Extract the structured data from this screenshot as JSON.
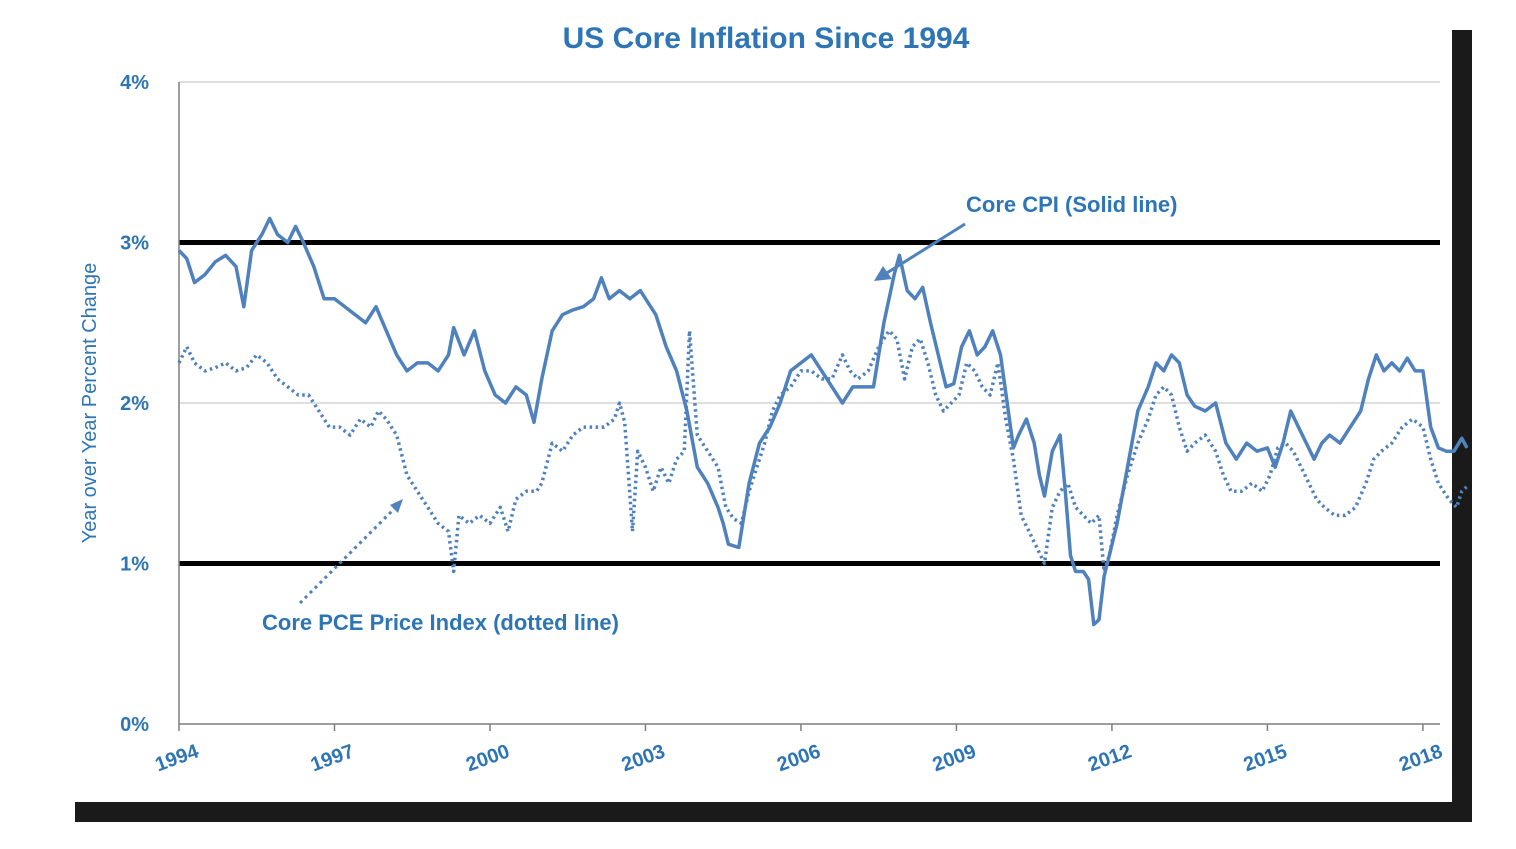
{
  "colors": {
    "series": "#4f81bd",
    "text": "#2e75b6",
    "threshold": "#000000",
    "grid": "#bfbfbf",
    "axis": "#7f7f7f",
    "shadow": "#1a1a1a"
  },
  "chart_data": {
    "type": "line",
    "title": "US Core Inflation Since 1994",
    "ylabel": "Year over Year Percent Change",
    "xlabel": "",
    "xlim": [
      1994,
      2018.33
    ],
    "ylim": [
      0,
      4
    ],
    "xticks": [
      1994,
      1997,
      2000,
      2003,
      2006,
      2009,
      2012,
      2015,
      2018
    ],
    "xtick_labels": [
      "1994",
      "1997",
      "2000",
      "2003",
      "2006",
      "2009",
      "2012",
      "2015",
      "2018"
    ],
    "yticks": [
      0,
      1,
      2,
      3,
      4
    ],
    "ytick_labels": [
      "0%",
      "1%",
      "2%",
      "3%",
      "4%"
    ],
    "grid": "horizontal",
    "threshold_lines": [
      1,
      3
    ],
    "annotations": [
      {
        "text": "Core CPI (Solid line)",
        "points_to": "Core CPI"
      },
      {
        "text": "Core PCE Price Index (dotted line)",
        "points_to": "Core PCE Price Index"
      }
    ],
    "series": [
      {
        "name": "Core CPI",
        "style": "solid",
        "points": [
          [
            1994.0,
            2.95
          ],
          [
            1994.15,
            2.9
          ],
          [
            1994.3,
            2.75
          ],
          [
            1994.5,
            2.8
          ],
          [
            1994.7,
            2.88
          ],
          [
            1994.9,
            2.92
          ],
          [
            1995.1,
            2.85
          ],
          [
            1995.25,
            2.6
          ],
          [
            1995.4,
            2.95
          ],
          [
            1995.6,
            3.05
          ],
          [
            1995.75,
            3.15
          ],
          [
            1995.9,
            3.05
          ],
          [
            1996.1,
            3.0
          ],
          [
            1996.25,
            3.1
          ],
          [
            1996.4,
            3.0
          ],
          [
            1996.6,
            2.85
          ],
          [
            1996.8,
            2.65
          ],
          [
            1997.0,
            2.65
          ],
          [
            1997.2,
            2.6
          ],
          [
            1997.4,
            2.55
          ],
          [
            1997.6,
            2.5
          ],
          [
            1997.8,
            2.6
          ],
          [
            1998.0,
            2.45
          ],
          [
            1998.2,
            2.3
          ],
          [
            1998.4,
            2.2
          ],
          [
            1998.6,
            2.25
          ],
          [
            1998.8,
            2.25
          ],
          [
            1999.0,
            2.2
          ],
          [
            1999.2,
            2.3
          ],
          [
            1999.3,
            2.47
          ],
          [
            1999.5,
            2.3
          ],
          [
            1999.7,
            2.45
          ],
          [
            1999.9,
            2.2
          ],
          [
            2000.1,
            2.05
          ],
          [
            2000.3,
            2.0
          ],
          [
            2000.5,
            2.1
          ],
          [
            2000.7,
            2.05
          ],
          [
            2000.85,
            1.88
          ],
          [
            2001.0,
            2.15
          ],
          [
            2001.2,
            2.45
          ],
          [
            2001.4,
            2.55
          ],
          [
            2001.6,
            2.58
          ],
          [
            2001.8,
            2.6
          ],
          [
            2002.0,
            2.65
          ],
          [
            2002.15,
            2.78
          ],
          [
            2002.3,
            2.65
          ],
          [
            2002.5,
            2.7
          ],
          [
            2002.7,
            2.65
          ],
          [
            2002.9,
            2.7
          ],
          [
            2003.0,
            2.65
          ],
          [
            2003.2,
            2.55
          ],
          [
            2003.4,
            2.35
          ],
          [
            2003.6,
            2.2
          ],
          [
            2003.8,
            1.95
          ],
          [
            2004.0,
            1.6
          ],
          [
            2004.2,
            1.5
          ],
          [
            2004.4,
            1.35
          ],
          [
            2004.5,
            1.25
          ],
          [
            2004.6,
            1.12
          ],
          [
            2004.8,
            1.1
          ],
          [
            2005.0,
            1.5
          ],
          [
            2005.2,
            1.75
          ],
          [
            2005.4,
            1.85
          ],
          [
            2005.6,
            2.0
          ],
          [
            2005.8,
            2.2
          ],
          [
            2006.0,
            2.25
          ],
          [
            2006.2,
            2.3
          ],
          [
            2006.4,
            2.2
          ],
          [
            2006.6,
            2.1
          ],
          [
            2006.8,
            2.0
          ],
          [
            2007.0,
            2.1
          ],
          [
            2007.2,
            2.1
          ],
          [
            2007.4,
            2.1
          ],
          [
            2007.6,
            2.5
          ],
          [
            2007.8,
            2.8
          ],
          [
            2007.9,
            2.92
          ],
          [
            2008.05,
            2.7
          ],
          [
            2008.2,
            2.65
          ],
          [
            2008.35,
            2.72
          ],
          [
            2008.5,
            2.5
          ],
          [
            2008.65,
            2.3
          ],
          [
            2008.8,
            2.1
          ],
          [
            2008.95,
            2.12
          ],
          [
            2009.1,
            2.35
          ],
          [
            2009.25,
            2.45
          ],
          [
            2009.4,
            2.3
          ],
          [
            2009.55,
            2.35
          ],
          [
            2009.7,
            2.45
          ],
          [
            2009.85,
            2.3
          ],
          [
            2010.0,
            1.95
          ],
          [
            2010.1,
            1.72
          ],
          [
            2010.2,
            1.8
          ],
          [
            2010.35,
            1.9
          ],
          [
            2010.5,
            1.75
          ],
          [
            2010.6,
            1.55
          ],
          [
            2010.7,
            1.42
          ],
          [
            2010.85,
            1.7
          ],
          [
            2011.0,
            1.8
          ],
          [
            2011.1,
            1.45
          ],
          [
            2011.2,
            1.05
          ],
          [
            2011.3,
            0.95
          ],
          [
            2011.45,
            0.95
          ],
          [
            2011.55,
            0.9
          ],
          [
            2011.65,
            0.62
          ],
          [
            2011.75,
            0.65
          ],
          [
            2011.85,
            0.92
          ],
          [
            2011.95,
            1.05
          ],
          [
            2012.1,
            1.25
          ],
          [
            2012.3,
            1.6
          ],
          [
            2012.5,
            1.95
          ],
          [
            2012.7,
            2.1
          ],
          [
            2012.85,
            2.25
          ],
          [
            2013.0,
            2.2
          ],
          [
            2013.15,
            2.3
          ],
          [
            2013.3,
            2.25
          ],
          [
            2013.45,
            2.05
          ],
          [
            2013.6,
            1.98
          ],
          [
            2013.8,
            1.95
          ],
          [
            2014.0,
            2.0
          ],
          [
            2014.2,
            1.75
          ],
          [
            2014.4,
            1.65
          ],
          [
            2014.6,
            1.75
          ],
          [
            2014.8,
            1.7
          ],
          [
            2015.0,
            1.72
          ],
          [
            2015.15,
            1.6
          ],
          [
            2015.3,
            1.75
          ],
          [
            2015.45,
            1.95
          ],
          [
            2015.6,
            1.85
          ],
          [
            2015.75,
            1.75
          ],
          [
            2015.9,
            1.65
          ],
          [
            2016.05,
            1.75
          ],
          [
            2016.2,
            1.8
          ],
          [
            2016.4,
            1.75
          ],
          [
            2016.6,
            1.85
          ],
          [
            2016.8,
            1.95
          ],
          [
            2016.95,
            2.15
          ],
          [
            2017.1,
            2.3
          ],
          [
            2017.25,
            2.2
          ],
          [
            2017.4,
            2.25
          ],
          [
            2017.55,
            2.2
          ],
          [
            2017.7,
            2.28
          ],
          [
            2017.85,
            2.2
          ],
          [
            2018.0,
            2.2
          ],
          [
            2018.15,
            1.85
          ],
          [
            2018.3,
            1.72
          ],
          [
            2018.45,
            1.7
          ],
          [
            2018.6,
            1.7
          ],
          [
            2018.75,
            1.78
          ],
          [
            2018.85,
            1.72
          ]
        ]
      },
      {
        "name": "Core PCE Price Index",
        "style": "dotted",
        "points": [
          [
            1994.0,
            2.25
          ],
          [
            1994.15,
            2.35
          ],
          [
            1994.3,
            2.25
          ],
          [
            1994.5,
            2.2
          ],
          [
            1994.7,
            2.22
          ],
          [
            1994.9,
            2.25
          ],
          [
            1995.1,
            2.2
          ],
          [
            1995.3,
            2.22
          ],
          [
            1995.5,
            2.3
          ],
          [
            1995.7,
            2.25
          ],
          [
            1995.9,
            2.15
          ],
          [
            1996.1,
            2.1
          ],
          [
            1996.3,
            2.05
          ],
          [
            1996.5,
            2.05
          ],
          [
            1996.7,
            1.95
          ],
          [
            1996.9,
            1.85
          ],
          [
            1997.1,
            1.85
          ],
          [
            1997.3,
            1.8
          ],
          [
            1997.5,
            1.9
          ],
          [
            1997.7,
            1.85
          ],
          [
            1997.85,
            1.95
          ],
          [
            1998.0,
            1.9
          ],
          [
            1998.2,
            1.8
          ],
          [
            1998.4,
            1.55
          ],
          [
            1998.6,
            1.45
          ],
          [
            1998.8,
            1.35
          ],
          [
            1999.0,
            1.25
          ],
          [
            1999.2,
            1.2
          ],
          [
            1999.3,
            0.95
          ],
          [
            1999.4,
            1.3
          ],
          [
            1999.6,
            1.25
          ],
          [
            1999.8,
            1.3
          ],
          [
            2000.0,
            1.25
          ],
          [
            2000.2,
            1.35
          ],
          [
            2000.35,
            1.2
          ],
          [
            2000.5,
            1.4
          ],
          [
            2000.7,
            1.45
          ],
          [
            2000.9,
            1.45
          ],
          [
            2001.0,
            1.5
          ],
          [
            2001.2,
            1.75
          ],
          [
            2001.4,
            1.7
          ],
          [
            2001.6,
            1.8
          ],
          [
            2001.8,
            1.85
          ],
          [
            2002.0,
            1.85
          ],
          [
            2002.2,
            1.85
          ],
          [
            2002.4,
            1.9
          ],
          [
            2002.5,
            2.0
          ],
          [
            2002.6,
            1.88
          ],
          [
            2002.75,
            1.2
          ],
          [
            2002.85,
            1.7
          ],
          [
            2003.0,
            1.6
          ],
          [
            2003.15,
            1.45
          ],
          [
            2003.3,
            1.6
          ],
          [
            2003.45,
            1.5
          ],
          [
            2003.6,
            1.65
          ],
          [
            2003.75,
            1.7
          ],
          [
            2003.85,
            2.45
          ],
          [
            2004.0,
            1.8
          ],
          [
            2004.2,
            1.7
          ],
          [
            2004.4,
            1.6
          ],
          [
            2004.55,
            1.35
          ],
          [
            2004.7,
            1.28
          ],
          [
            2004.85,
            1.25
          ],
          [
            2005.0,
            1.45
          ],
          [
            2005.15,
            1.6
          ],
          [
            2005.3,
            1.75
          ],
          [
            2005.45,
            1.95
          ],
          [
            2005.6,
            2.05
          ],
          [
            2005.8,
            2.1
          ],
          [
            2006.0,
            2.2
          ],
          [
            2006.2,
            2.2
          ],
          [
            2006.4,
            2.15
          ],
          [
            2006.6,
            2.15
          ],
          [
            2006.8,
            2.3
          ],
          [
            2006.95,
            2.2
          ],
          [
            2007.1,
            2.15
          ],
          [
            2007.3,
            2.2
          ],
          [
            2007.5,
            2.35
          ],
          [
            2007.7,
            2.45
          ],
          [
            2007.85,
            2.4
          ],
          [
            2008.0,
            2.15
          ],
          [
            2008.15,
            2.35
          ],
          [
            2008.3,
            2.4
          ],
          [
            2008.45,
            2.25
          ],
          [
            2008.6,
            2.05
          ],
          [
            2008.75,
            1.95
          ],
          [
            2008.9,
            2.0
          ],
          [
            2009.05,
            2.05
          ],
          [
            2009.2,
            2.25
          ],
          [
            2009.35,
            2.2
          ],
          [
            2009.5,
            2.1
          ],
          [
            2009.65,
            2.05
          ],
          [
            2009.8,
            2.25
          ],
          [
            2009.95,
            1.9
          ],
          [
            2010.1,
            1.65
          ],
          [
            2010.25,
            1.3
          ],
          [
            2010.4,
            1.2
          ],
          [
            2010.55,
            1.1
          ],
          [
            2010.7,
            1.0
          ],
          [
            2010.85,
            1.35
          ],
          [
            2011.0,
            1.45
          ],
          [
            2011.15,
            1.5
          ],
          [
            2011.3,
            1.35
          ],
          [
            2011.45,
            1.3
          ],
          [
            2011.6,
            1.25
          ],
          [
            2011.75,
            1.3
          ],
          [
            2011.85,
            0.95
          ],
          [
            2011.95,
            1.05
          ],
          [
            2012.1,
            1.3
          ],
          [
            2012.3,
            1.55
          ],
          [
            2012.5,
            1.75
          ],
          [
            2012.7,
            1.9
          ],
          [
            2012.85,
            2.05
          ],
          [
            2013.0,
            2.1
          ],
          [
            2013.15,
            2.05
          ],
          [
            2013.3,
            1.85
          ],
          [
            2013.45,
            1.7
          ],
          [
            2013.6,
            1.75
          ],
          [
            2013.8,
            1.8
          ],
          [
            2014.0,
            1.7
          ],
          [
            2014.15,
            1.55
          ],
          [
            2014.3,
            1.45
          ],
          [
            2014.5,
            1.45
          ],
          [
            2014.7,
            1.5
          ],
          [
            2014.9,
            1.45
          ],
          [
            2015.05,
            1.55
          ],
          [
            2015.2,
            1.72
          ],
          [
            2015.35,
            1.75
          ],
          [
            2015.5,
            1.7
          ],
          [
            2015.65,
            1.6
          ],
          [
            2015.8,
            1.5
          ],
          [
            2015.95,
            1.4
          ],
          [
            2016.1,
            1.35
          ],
          [
            2016.3,
            1.3
          ],
          [
            2016.5,
            1.3
          ],
          [
            2016.7,
            1.35
          ],
          [
            2016.9,
            1.5
          ],
          [
            2017.05,
            1.65
          ],
          [
            2017.2,
            1.7
          ],
          [
            2017.4,
            1.75
          ],
          [
            2017.6,
            1.85
          ],
          [
            2017.8,
            1.9
          ],
          [
            2018.0,
            1.85
          ],
          [
            2018.15,
            1.65
          ],
          [
            2018.3,
            1.5
          ],
          [
            2018.5,
            1.4
          ],
          [
            2018.65,
            1.35
          ],
          [
            2018.75,
            1.45
          ],
          [
            2018.85,
            1.48
          ]
        ]
      }
    ]
  }
}
